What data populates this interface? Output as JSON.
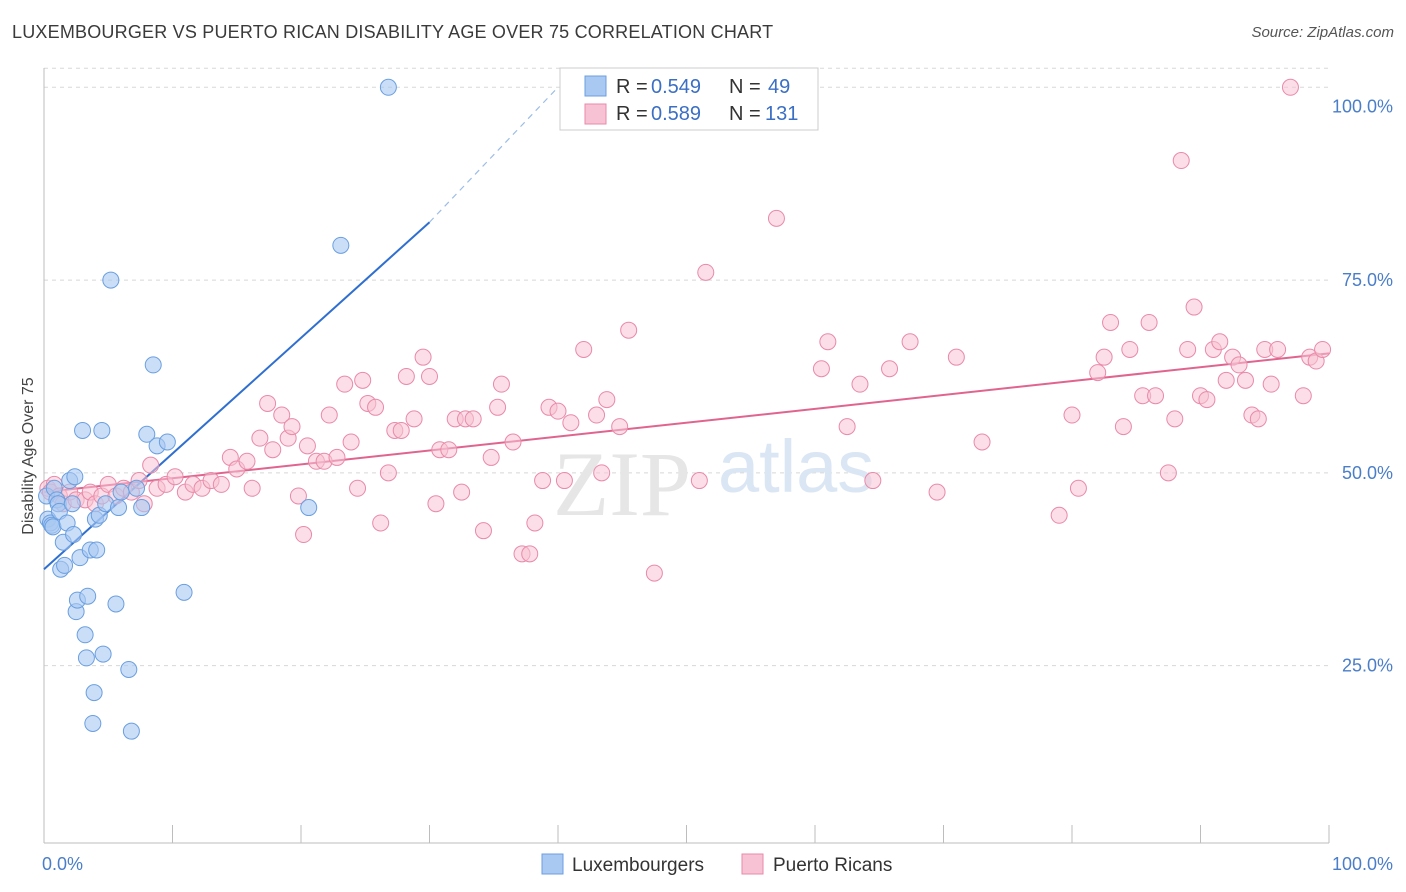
{
  "title": "LUXEMBOURGER VS PUERTO RICAN DISABILITY AGE OVER 75 CORRELATION CHART",
  "source": "Source: ZipAtlas.com",
  "watermark": {
    "zip": "ZIP",
    "atlas": "atlas"
  },
  "colors": {
    "blue_fill": "#a9c8f2",
    "blue_stroke": "#6a9fe0",
    "blue_line": "#2f6fd0",
    "pink_fill": "#f7c3d4",
    "pink_stroke": "#e98aa9",
    "pink_line": "#e0648f",
    "tick_label": "#4a7ec8",
    "grid": "#d8d8d8"
  },
  "legend": {
    "rows": [
      {
        "r_label": "R =",
        "r_value": "0.549",
        "n_label": "N =",
        "n_value": "49"
      },
      {
        "r_label": "R =",
        "r_value": "0.589",
        "n_label": "N =",
        "n_value": "131"
      }
    ]
  },
  "bottom_legend": [
    "Luxembourgers",
    "Puerto Ricans"
  ],
  "chart_data": {
    "type": "scatter",
    "title": "LUXEMBOURGER VS PUERTO RICAN DISABILITY AGE OVER 75 CORRELATION CHART",
    "xlabel": "",
    "ylabel": "Disability Age Over 75",
    "xlim": [
      0,
      100
    ],
    "ylim": [
      2,
      102.5
    ],
    "x_tick_labels": [
      "0.0%",
      "100.0%"
    ],
    "y_ticks": [
      25,
      50,
      75,
      100
    ],
    "y_tick_labels": [
      "25.0%",
      "50.0%",
      "75.0%",
      "100.0%"
    ],
    "grid": "horizontal dashed",
    "legend_position": "top-center",
    "series": [
      {
        "name": "Luxembourgers",
        "color": "#a9c8f2",
        "r": 0.549,
        "n": 49,
        "trend": {
          "x": [
            0,
            30
          ],
          "y": [
            37.5,
            82.5
          ],
          "dashed_to": [
            40,
            100
          ]
        },
        "points": [
          [
            0.2,
            47
          ],
          [
            0.3,
            44
          ],
          [
            0.5,
            43.5
          ],
          [
            0.6,
            43.2
          ],
          [
            0.7,
            43
          ],
          [
            0.8,
            48
          ],
          [
            1.0,
            46.5
          ],
          [
            1.1,
            46
          ],
          [
            1.2,
            45
          ],
          [
            1.3,
            37.5
          ],
          [
            1.5,
            41
          ],
          [
            1.6,
            38
          ],
          [
            1.8,
            43.5
          ],
          [
            2.0,
            49
          ],
          [
            2.2,
            46
          ],
          [
            2.3,
            42
          ],
          [
            2.4,
            49.5
          ],
          [
            2.5,
            32
          ],
          [
            2.6,
            33.5
          ],
          [
            2.8,
            39
          ],
          [
            3.0,
            55.5
          ],
          [
            3.2,
            29
          ],
          [
            3.3,
            26
          ],
          [
            3.4,
            34
          ],
          [
            3.6,
            40
          ],
          [
            3.8,
            17.5
          ],
          [
            3.9,
            21.5
          ],
          [
            4.0,
            44
          ],
          [
            4.1,
            40
          ],
          [
            4.3,
            44.5
          ],
          [
            4.5,
            55.5
          ],
          [
            4.6,
            26.5
          ],
          [
            4.8,
            46
          ],
          [
            5.2,
            75
          ],
          [
            5.6,
            33
          ],
          [
            5.8,
            45.5
          ],
          [
            6.6,
            24.5
          ],
          [
            6.8,
            16.5
          ],
          [
            7.2,
            48
          ],
          [
            7.6,
            45.5
          ],
          [
            8.0,
            55
          ],
          [
            8.5,
            64
          ],
          [
            8.8,
            53.5
          ],
          [
            9.6,
            54
          ],
          [
            10.9,
            34.5
          ],
          [
            20.6,
            45.5
          ],
          [
            23.1,
            79.5
          ],
          [
            26.8,
            100
          ],
          [
            6.0,
            47.5
          ]
        ]
      },
      {
        "name": "Puerto Ricans",
        "color": "#f7c3d4",
        "r": 0.589,
        "n": 131,
        "trend": {
          "x": [
            0,
            100
          ],
          "y": [
            47.5,
            65.5
          ]
        },
        "points": [
          [
            0.3,
            48
          ],
          [
            0.5,
            47.5
          ],
          [
            0.8,
            48.5
          ],
          [
            1.2,
            47
          ],
          [
            1.5,
            46
          ],
          [
            2.0,
            47.5
          ],
          [
            2.5,
            46.5
          ],
          [
            3.2,
            46.5
          ],
          [
            3.6,
            47.5
          ],
          [
            4.0,
            46
          ],
          [
            4.5,
            47
          ],
          [
            5.0,
            48.5
          ],
          [
            5.6,
            47
          ],
          [
            6.2,
            48
          ],
          [
            6.8,
            47.5
          ],
          [
            7.4,
            49
          ],
          [
            7.8,
            46
          ],
          [
            8.3,
            51
          ],
          [
            8.8,
            48
          ],
          [
            9.5,
            48.5
          ],
          [
            10.2,
            49.5
          ],
          [
            11.0,
            47.5
          ],
          [
            11.6,
            48.5
          ],
          [
            12.3,
            48
          ],
          [
            13.0,
            49
          ],
          [
            13.8,
            48.5
          ],
          [
            14.5,
            52
          ],
          [
            15.0,
            50.5
          ],
          [
            15.8,
            51.5
          ],
          [
            16.2,
            48
          ],
          [
            16.8,
            54.5
          ],
          [
            17.4,
            59
          ],
          [
            17.8,
            53
          ],
          [
            18.5,
            57.5
          ],
          [
            19.0,
            54.5
          ],
          [
            19.3,
            56
          ],
          [
            19.8,
            47
          ],
          [
            20.2,
            42
          ],
          [
            20.5,
            53.5
          ],
          [
            21.2,
            51.5
          ],
          [
            21.8,
            51.5
          ],
          [
            22.2,
            57.5
          ],
          [
            22.8,
            52
          ],
          [
            23.4,
            61.5
          ],
          [
            23.9,
            54
          ],
          [
            24.4,
            48
          ],
          [
            24.8,
            62
          ],
          [
            25.2,
            59
          ],
          [
            25.8,
            58.5
          ],
          [
            26.2,
            43.5
          ],
          [
            26.8,
            50
          ],
          [
            27.3,
            55.5
          ],
          [
            27.8,
            55.5
          ],
          [
            28.2,
            62.5
          ],
          [
            28.8,
            57
          ],
          [
            29.5,
            65
          ],
          [
            30.0,
            62.5
          ],
          [
            30.5,
            46
          ],
          [
            30.8,
            53
          ],
          [
            31.5,
            53
          ],
          [
            32.0,
            57
          ],
          [
            32.5,
            47.5
          ],
          [
            32.8,
            57
          ],
          [
            33.4,
            57
          ],
          [
            34.2,
            42.5
          ],
          [
            34.8,
            52
          ],
          [
            35.3,
            58.5
          ],
          [
            35.6,
            61.5
          ],
          [
            36.5,
            54
          ],
          [
            37.2,
            39.5
          ],
          [
            37.8,
            39.5
          ],
          [
            38.2,
            43.5
          ],
          [
            38.8,
            49
          ],
          [
            39.3,
            58.5
          ],
          [
            40.0,
            58
          ],
          [
            40.5,
            49
          ],
          [
            41.0,
            56.5
          ],
          [
            42.0,
            66
          ],
          [
            43.0,
            57.5
          ],
          [
            43.4,
            50
          ],
          [
            43.8,
            59.5
          ],
          [
            44.8,
            56
          ],
          [
            45.5,
            68.5
          ],
          [
            47.5,
            37
          ],
          [
            51.0,
            49
          ],
          [
            51.5,
            76
          ],
          [
            57.0,
            83
          ],
          [
            60.5,
            63.5
          ],
          [
            61.0,
            67
          ],
          [
            62.5,
            56
          ],
          [
            63.5,
            61.5
          ],
          [
            64.5,
            49
          ],
          [
            65.8,
            63.5
          ],
          [
            67.4,
            67
          ],
          [
            69.5,
            47.5
          ],
          [
            71.0,
            65
          ],
          [
            73.0,
            54
          ],
          [
            79.0,
            44.5
          ],
          [
            80.0,
            57.5
          ],
          [
            80.5,
            48
          ],
          [
            82.0,
            63
          ],
          [
            82.5,
            65
          ],
          [
            83.0,
            69.5
          ],
          [
            84.0,
            56
          ],
          [
            84.5,
            66
          ],
          [
            85.5,
            60
          ],
          [
            86.0,
            69.5
          ],
          [
            86.5,
            60
          ],
          [
            87.5,
            50
          ],
          [
            88.0,
            57
          ],
          [
            88.5,
            90.5
          ],
          [
            89.0,
            66
          ],
          [
            89.5,
            71.5
          ],
          [
            90.0,
            60
          ],
          [
            90.5,
            59.5
          ],
          [
            91.0,
            66
          ],
          [
            91.5,
            67
          ],
          [
            92.0,
            62
          ],
          [
            92.5,
            65
          ],
          [
            93.0,
            64
          ],
          [
            93.5,
            62
          ],
          [
            94.0,
            57.5
          ],
          [
            94.5,
            57
          ],
          [
            95.0,
            66
          ],
          [
            95.5,
            61.5
          ],
          [
            96.0,
            66
          ],
          [
            97.0,
            100
          ],
          [
            98.0,
            60
          ],
          [
            98.5,
            65
          ],
          [
            99.0,
            64.5
          ],
          [
            99.5,
            66
          ]
        ]
      }
    ]
  }
}
